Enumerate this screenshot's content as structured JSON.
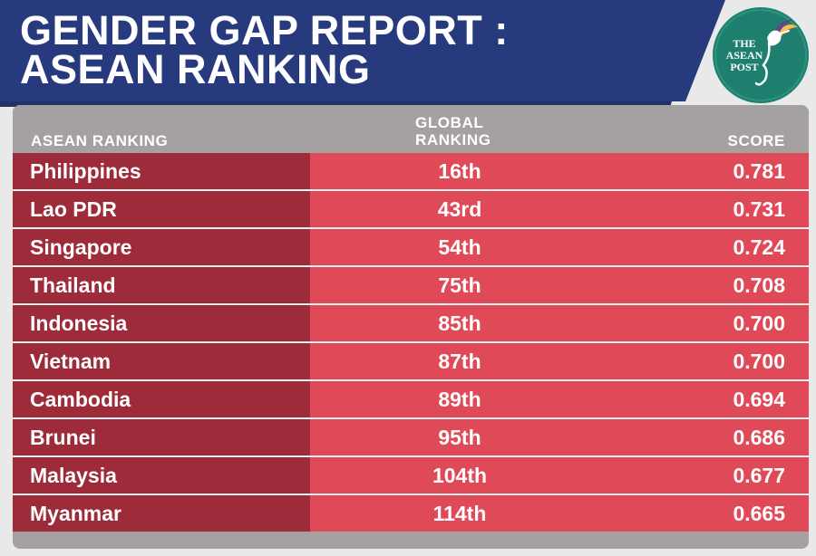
{
  "header": {
    "title_line1": "GENDER GAP REPORT :",
    "title_line2": "ASEAN RANKING"
  },
  "logo": {
    "text_line1": "THE",
    "text_line2": "ASEAN",
    "text_line3": "POST",
    "icon": "hummingbird-icon"
  },
  "colors": {
    "banner": "#283a7e",
    "header_row": "#a5a0a1",
    "country_column": "#9e2b39",
    "data_columns": "#e04957",
    "logo": "#1f7f6e"
  },
  "chart_data": {
    "type": "table",
    "title": "GENDER GAP REPORT : ASEAN RANKING",
    "columns": [
      "ASEAN RANKING",
      "GLOBAL RANKING",
      "SCORE"
    ],
    "rows": [
      {
        "country": "Philippines",
        "global_ranking": "16th",
        "score": "0.781"
      },
      {
        "country": "Lao PDR",
        "global_ranking": "43rd",
        "score": "0.731"
      },
      {
        "country": "Singapore",
        "global_ranking": "54th",
        "score": "0.724"
      },
      {
        "country": "Thailand",
        "global_ranking": "75th",
        "score": "0.708"
      },
      {
        "country": "Indonesia",
        "global_ranking": "85th",
        "score": "0.700"
      },
      {
        "country": "Vietnam",
        "global_ranking": "87th",
        "score": "0.700"
      },
      {
        "country": "Cambodia",
        "global_ranking": "89th",
        "score": "0.694"
      },
      {
        "country": "Brunei",
        "global_ranking": "95th",
        "score": "0.686"
      },
      {
        "country": "Malaysia",
        "global_ranking": "104th",
        "score": "0.677"
      },
      {
        "country": "Myanmar",
        "global_ranking": "114th",
        "score": "0.665"
      }
    ]
  }
}
